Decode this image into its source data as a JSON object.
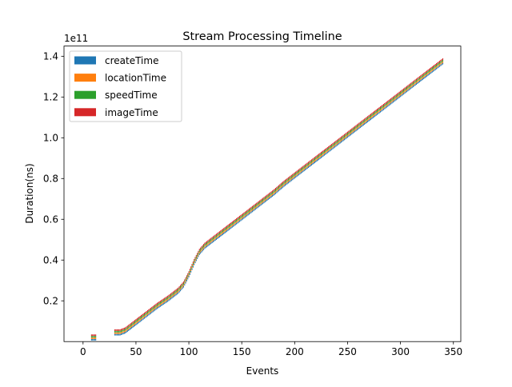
{
  "chart_data": {
    "type": "bar",
    "title": "Stream Processing Timeline",
    "xlabel": "Events",
    "ylabel": "Duration(ns)",
    "y_offset_label": "1e11",
    "xlim": [
      -18,
      357
    ],
    "ylim": [
      0.0,
      145000000000.0
    ],
    "xticks": [
      0,
      50,
      100,
      150,
      200,
      250,
      300,
      350
    ],
    "yticks": [
      20000000000.0,
      40000000000.0,
      60000000000.0,
      80000000000.0,
      100000000000.0,
      120000000000.0,
      140000000000.0
    ],
    "ytick_labels": [
      "0.2",
      "0.4",
      "0.6",
      "0.8",
      "1.0",
      "1.2",
      "1.4"
    ],
    "legend_position": "upper-left",
    "series": [
      {
        "name": "createTime",
        "color": "#1f77b4"
      },
      {
        "name": "locationTime",
        "color": "#ff7f0e"
      },
      {
        "name": "speedTime",
        "color": "#2ca02c"
      },
      {
        "name": "imageTime",
        "color": "#d62728"
      }
    ],
    "timeline_points": [
      {
        "x": 8,
        "y": 2000000000.0
      },
      {
        "x": 12,
        "y": 2000000000.0
      },
      {
        "x": 30,
        "y": 4500000000.0
      },
      {
        "x": 35,
        "y": 4500000000.0
      },
      {
        "x": 40,
        "y": 5500000000.0
      },
      {
        "x": 50,
        "y": 9500000000.0
      },
      {
        "x": 60,
        "y": 13500000000.0
      },
      {
        "x": 70,
        "y": 17500000000.0
      },
      {
        "x": 80,
        "y": 21000000000.0
      },
      {
        "x": 90,
        "y": 25000000000.0
      },
      {
        "x": 95,
        "y": 28000000000.0
      },
      {
        "x": 100,
        "y": 33000000000.0
      },
      {
        "x": 105,
        "y": 39000000000.0
      },
      {
        "x": 110,
        "y": 44000000000.0
      },
      {
        "x": 115,
        "y": 47000000000.0
      },
      {
        "x": 120,
        "y": 49000000000.0
      },
      {
        "x": 130,
        "y": 53000000000.0
      },
      {
        "x": 140,
        "y": 57000000000.0
      },
      {
        "x": 150,
        "y": 61000000000.0
      },
      {
        "x": 160,
        "y": 65000000000.0
      },
      {
        "x": 170,
        "y": 69000000000.0
      },
      {
        "x": 180,
        "y": 73000000000.0
      },
      {
        "x": 190,
        "y": 77500000000.0
      },
      {
        "x": 200,
        "y": 81500000000.0
      },
      {
        "x": 210,
        "y": 85500000000.0
      },
      {
        "x": 220,
        "y": 89500000000.0
      },
      {
        "x": 230,
        "y": 93500000000.0
      },
      {
        "x": 240,
        "y": 97500000000.0
      },
      {
        "x": 250,
        "y": 101500000000.0
      },
      {
        "x": 260,
        "y": 105500000000.0
      },
      {
        "x": 270,
        "y": 109500000000.0
      },
      {
        "x": 280,
        "y": 113500000000.0
      },
      {
        "x": 290,
        "y": 117500000000.0
      },
      {
        "x": 300,
        "y": 121500000000.0
      },
      {
        "x": 310,
        "y": 125500000000.0
      },
      {
        "x": 320,
        "y": 129500000000.0
      },
      {
        "x": 330,
        "y": 133500000000.0
      },
      {
        "x": 340,
        "y": 137500000000.0
      }
    ]
  }
}
